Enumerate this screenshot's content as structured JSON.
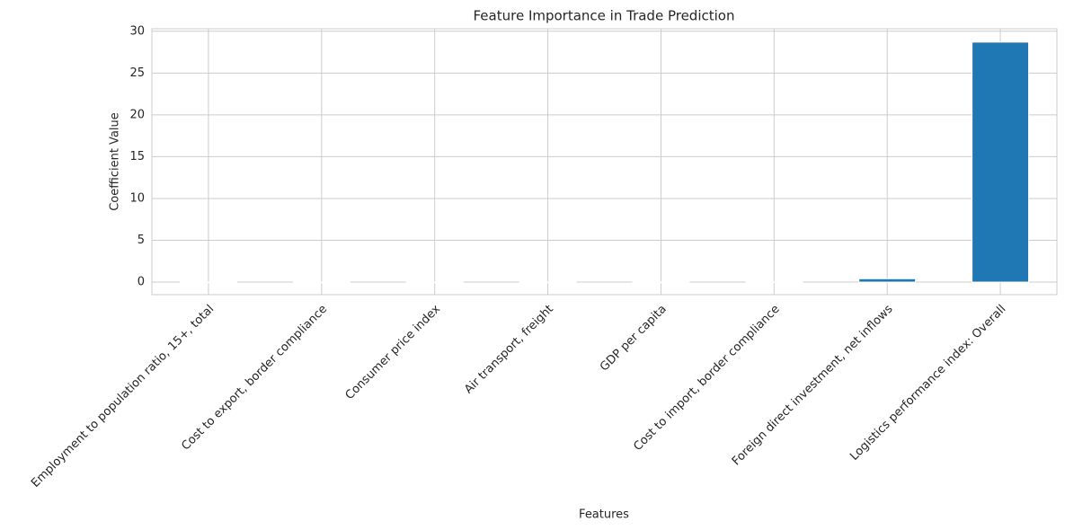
{
  "chart_data": {
    "type": "bar",
    "title": "Feature Importance in Trade Prediction",
    "x_label": "Features",
    "y_label": "Coefficient Value",
    "categories": [
      "Employment to population ratio, 15+, total",
      "Cost to export, border compliance",
      "Consumer price index",
      "Air transport, freight",
      "GDP per capita",
      "Cost to import, border compliance",
      "Foreign direct investment, net inflows",
      "Logistics performance index: Overall"
    ],
    "values": [
      0.02,
      0.02,
      0.02,
      0.02,
      0.03,
      0.03,
      0.4,
      28.7
    ],
    "color": "#1f77b4",
    "ylim": [
      -1.5,
      30.3
    ],
    "yticks": [
      0,
      5,
      10,
      15,
      20,
      25,
      30
    ],
    "grid": true
  }
}
